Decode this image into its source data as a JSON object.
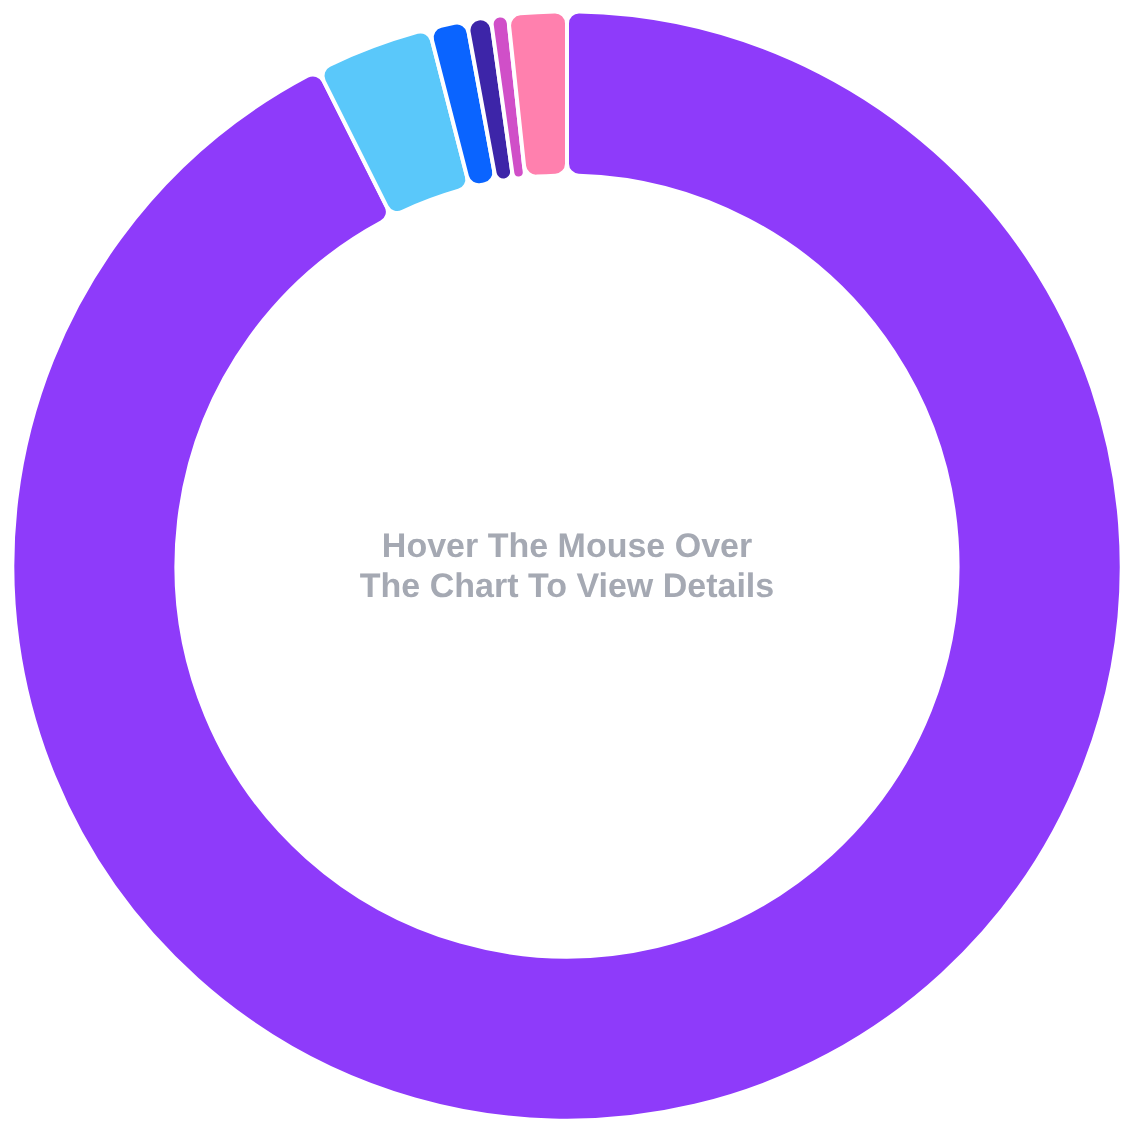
{
  "chart_data": {
    "type": "donut",
    "title": "Hover The Mouse Over\nThe Chart To View Details",
    "categories": [
      null,
      null,
      null,
      null,
      null,
      null
    ],
    "values": [
      92.6,
      3.4,
      1.1,
      0.7,
      0.5,
      1.7
    ],
    "colors": [
      "#8e3bfa",
      "#5ac8fa",
      "#0a64ff",
      "#3d25a8",
      "#d04fc8",
      "#ff80ae"
    ]
  }
}
